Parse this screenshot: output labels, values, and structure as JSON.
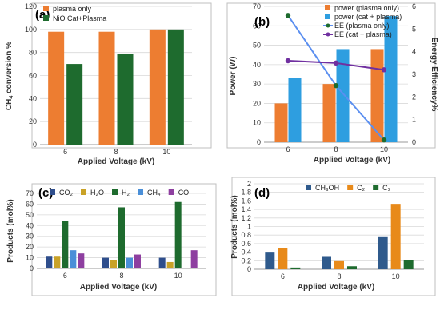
{
  "chart_data": [
    {
      "panel": "(a)",
      "type": "bar",
      "categories": [
        "6",
        "8",
        "10"
      ],
      "series": [
        {
          "name": "plasma only",
          "values": [
            98,
            98,
            100
          ],
          "color": "#ed7d31"
        },
        {
          "name": "NiO Cat+Plasma",
          "values": [
            70,
            79,
            100
          ],
          "color": "#1e6b2e"
        }
      ],
      "xlabel": "Applied Voltage (kV)",
      "ylabel": "CH4 conversion %",
      "ylim": [
        0,
        120
      ],
      "yticks": [
        0,
        20,
        40,
        60,
        80,
        100,
        120
      ],
      "legend": "top-left",
      "grid": true
    },
    {
      "panel": "(b)",
      "type": "bar+line",
      "categories": [
        "6",
        "8",
        "10"
      ],
      "series": [
        {
          "name": "power (plasma only)",
          "values": [
            20,
            30,
            48
          ],
          "color": "#ed7d31",
          "axis": "left",
          "kind": "bar"
        },
        {
          "name": "power (cat + plasma)",
          "values": [
            33,
            48,
            65
          ],
          "color": "#2e9ee0",
          "axis": "left",
          "kind": "bar"
        },
        {
          "name": "EE (plasma only)",
          "values": [
            5.6,
            2.5,
            0.1
          ],
          "color": "#5b8ff0",
          "axis": "right",
          "kind": "line"
        },
        {
          "name": "EE (cat + plasma)",
          "values": [
            3.6,
            3.5,
            3.2
          ],
          "color": "#7030a0",
          "axis": "right",
          "kind": "line"
        }
      ],
      "xlabel": "Applied Voltage (kV)",
      "ylabel": "Power (W)",
      "y2label": "Energy Efficiency%",
      "ylim": [
        0,
        70
      ],
      "yticks": [
        0,
        10,
        20,
        30,
        40,
        50,
        60,
        70
      ],
      "y2lim": [
        0,
        6
      ],
      "y2ticks": [
        0,
        1,
        2,
        3,
        4,
        5,
        6
      ],
      "legend": "top-right",
      "grid": true
    },
    {
      "panel": "(c)",
      "type": "bar",
      "categories": [
        "6",
        "8",
        "10"
      ],
      "series": [
        {
          "name": "CO₂",
          "values": [
            11,
            10,
            10
          ],
          "color": "#2f4e8c"
        },
        {
          "name": "H₂O",
          "values": [
            11,
            8,
            6
          ],
          "color": "#c9a227"
        },
        {
          "name": "H₂",
          "values": [
            44,
            57,
            62
          ],
          "color": "#1e6b2e"
        },
        {
          "name": "CH₄",
          "values": [
            17,
            10,
            0
          ],
          "color": "#4a8fd8"
        },
        {
          "name": "CO",
          "values": [
            14,
            13,
            17
          ],
          "color": "#8e3fa0"
        }
      ],
      "xlabel": "Applied Voltage (kV)",
      "ylabel": "Products (mol%)",
      "ylim": [
        0,
        70
      ],
      "yticks": [
        0,
        10,
        20,
        30,
        40,
        50,
        60,
        70
      ],
      "legend": "top",
      "grid": true
    },
    {
      "panel": "(d)",
      "type": "bar",
      "categories": [
        "6",
        "8",
        "10"
      ],
      "series": [
        {
          "name": "CH₃OH",
          "values": [
            0.39,
            0.29,
            0.77
          ],
          "color": "#2f5a8c"
        },
        {
          "name": "C₂",
          "values": [
            0.49,
            0.19,
            1.53
          ],
          "color": "#e88a1a"
        },
        {
          "name": "C₃",
          "values": [
            0.04,
            0.07,
            0.21
          ],
          "color": "#1e6b2e"
        }
      ],
      "xlabel": "Applied Voltage (kV)",
      "ylabel": "Products (mol%)",
      "ylim": [
        0,
        2.0
      ],
      "yticks": [
        0,
        0.2,
        0.4,
        0.6,
        0.8,
        1,
        1.2,
        1.4,
        1.6,
        1.8,
        2
      ],
      "legend": "top",
      "grid": true
    }
  ]
}
